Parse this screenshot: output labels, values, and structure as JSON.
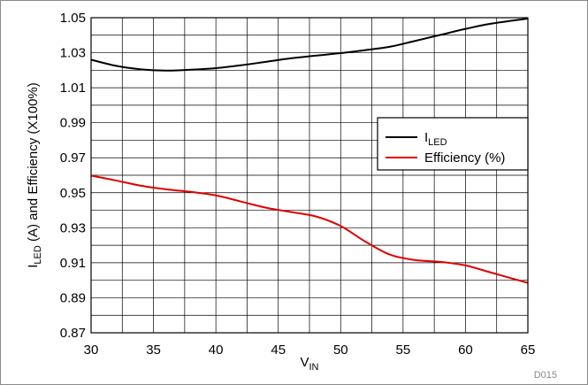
{
  "chart_data": {
    "type": "line",
    "xlabel_main": "V",
    "xlabel_sub": "IN",
    "ylabel_prefix": "I",
    "ylabel_sub": "LED",
    "ylabel_suffix": " (A) and Efficiency (X100%)",
    "figure_id": "D015",
    "xlim": [
      30,
      65
    ],
    "ylim": [
      0.87,
      1.05
    ],
    "x_ticks": [
      30,
      35,
      40,
      45,
      50,
      55,
      60,
      65
    ],
    "y_ticks": [
      "0.87",
      "0.89",
      "0.91",
      "0.93",
      "0.95",
      "0.97",
      "0.99",
      "1.01",
      "1.03",
      "1.05"
    ],
    "grid": true,
    "legend_position": "right",
    "series": [
      {
        "name_main": "I",
        "name_sub": "LED",
        "color": "#000000",
        "x": [
          30,
          32,
          34,
          36,
          38,
          40,
          42,
          44,
          46,
          48,
          50,
          52,
          54,
          56,
          58,
          60,
          62,
          65
        ],
        "y": [
          1.026,
          1.0225,
          1.0205,
          1.0198,
          1.0203,
          1.0212,
          1.0228,
          1.0248,
          1.0268,
          1.0283,
          1.0298,
          1.0315,
          1.0335,
          1.0368,
          1.0402,
          1.0436,
          1.0465,
          1.0495
        ]
      },
      {
        "name_main": "Efficiency (%)",
        "name_sub": "",
        "color": "#e00000",
        "x": [
          30,
          32,
          34,
          36,
          38,
          40,
          42,
          44,
          46,
          48,
          50,
          52,
          54,
          56,
          58,
          60,
          62,
          65
        ],
        "y": [
          0.9598,
          0.957,
          0.954,
          0.952,
          0.9505,
          0.9485,
          0.945,
          0.9415,
          0.939,
          0.9365,
          0.931,
          0.922,
          0.9145,
          0.9115,
          0.9105,
          0.9085,
          0.9045,
          0.8985
        ]
      }
    ]
  }
}
